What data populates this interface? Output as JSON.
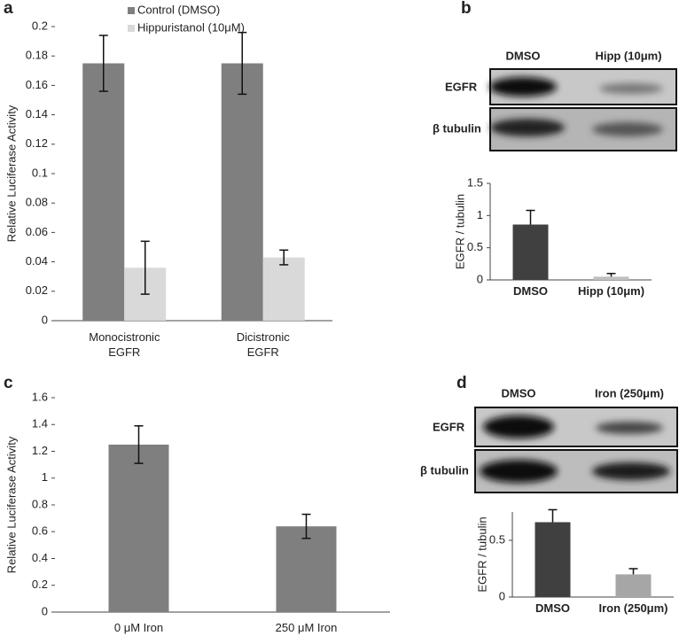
{
  "panels": [
    "a",
    "b",
    "c",
    "d"
  ],
  "chart_data": [
    {
      "type": "bar",
      "ylabel": "Relative Luciferase Activity",
      "categories": [
        "Monocistronic EGFR",
        "Dicistronic EGFR"
      ],
      "series": [
        {
          "name": "Control (DMSO)",
          "color": "#7f7f7f",
          "values": [
            0.175,
            0.175
          ],
          "errors": [
            0.019,
            0.021
          ]
        },
        {
          "name": "Hippuristanol (10μM)",
          "color": "#d9d9d9",
          "values": [
            0.036,
            0.043
          ],
          "errors": [
            0.018,
            0.005
          ]
        }
      ],
      "ylim": [
        0,
        0.2
      ],
      "yticks": [
        0,
        0.02,
        0.04,
        0.06,
        0.08,
        0.1,
        0.12,
        0.14,
        0.16,
        0.18,
        0.2
      ],
      "error_bars": "both",
      "legend": "top"
    },
    {
      "type": "bar",
      "ylabel": "EGFR / tubulin",
      "categories": [
        "DMSO",
        "Hipp (10μm)"
      ],
      "values": [
        0.86,
        0.05
      ],
      "errors": [
        0.22,
        0.05
      ],
      "colors": [
        "#404040",
        "#bfbfbf"
      ],
      "ylim": [
        0,
        1.5
      ],
      "yticks": [
        0,
        0.5,
        1,
        1.5
      ],
      "error_bars": "up"
    },
    {
      "type": "bar",
      "ylabel": "Relative Luciferase Activity",
      "categories": [
        "0 μM Iron",
        "250 μM Iron"
      ],
      "values": [
        1.25,
        0.64
      ],
      "errors": [
        0.14,
        0.09
      ],
      "color": "#7f7f7f",
      "ylim": [
        0,
        1.6
      ],
      "yticks": [
        0,
        0.2,
        0.4,
        0.6,
        0.8,
        1,
        1.2,
        1.4,
        1.6
      ],
      "error_bars": "both"
    },
    {
      "type": "bar",
      "ylabel": "EGFR / tubulin",
      "categories": [
        "DMSO",
        "Iron (250μm)"
      ],
      "values": [
        0.66,
        0.2
      ],
      "errors": [
        0.11,
        0.05
      ],
      "colors": [
        "#404040",
        "#a6a6a6"
      ],
      "ylim": [
        0,
        0.75
      ],
      "yticks": [
        0,
        0.5
      ],
      "error_bars": "up"
    }
  ],
  "blots": [
    {
      "columns": [
        "DMSO",
        "Hipp (10μm)"
      ],
      "rows": [
        "EGFR",
        "β tubulin"
      ]
    },
    {
      "columns": [
        "DMSO",
        "Iron (250μm)"
      ],
      "rows": [
        "EGFR",
        "β tubulin"
      ]
    }
  ]
}
